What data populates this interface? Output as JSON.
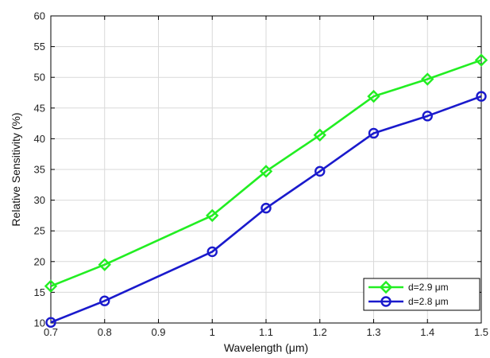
{
  "chart_data": {
    "type": "line",
    "xlabel": "Wavelength (μm)",
    "ylabel": "Relative Sensitivity (%)",
    "xlim": [
      0.7,
      1.5
    ],
    "ylim": [
      10,
      60
    ],
    "xticks": [
      0.7,
      0.8,
      0.9,
      1.0,
      1.1,
      1.2,
      1.3,
      1.4,
      1.5
    ],
    "xtick_labels": [
      "0.7",
      "0.8",
      "0.9",
      "1",
      "1.1",
      "1.2",
      "1.3",
      "1.4",
      "1.5"
    ],
    "yticks": [
      10,
      15,
      20,
      25,
      30,
      35,
      40,
      45,
      50,
      55,
      60
    ],
    "ytick_labels": [
      "10",
      "15",
      "20",
      "25",
      "30",
      "35",
      "40",
      "45",
      "50",
      "55",
      "60"
    ],
    "grid": true,
    "legend_position": "bottom-right",
    "series": [
      {
        "name": "d=2.9 μm",
        "color": "#22ee22",
        "marker": "diamond",
        "x": [
          0.7,
          0.8,
          1.0,
          1.1,
          1.2,
          1.3,
          1.4,
          1.5
        ],
        "y": [
          16.0,
          19.5,
          27.5,
          34.7,
          40.6,
          46.9,
          49.7,
          52.8
        ]
      },
      {
        "name": "d=2.8 μm",
        "color": "#1a1acc",
        "marker": "circle",
        "x": [
          0.7,
          0.8,
          1.0,
          1.1,
          1.2,
          1.3,
          1.4,
          1.5
        ],
        "y": [
          10.1,
          13.6,
          21.6,
          28.7,
          34.7,
          40.9,
          43.7,
          46.9
        ]
      }
    ]
  }
}
